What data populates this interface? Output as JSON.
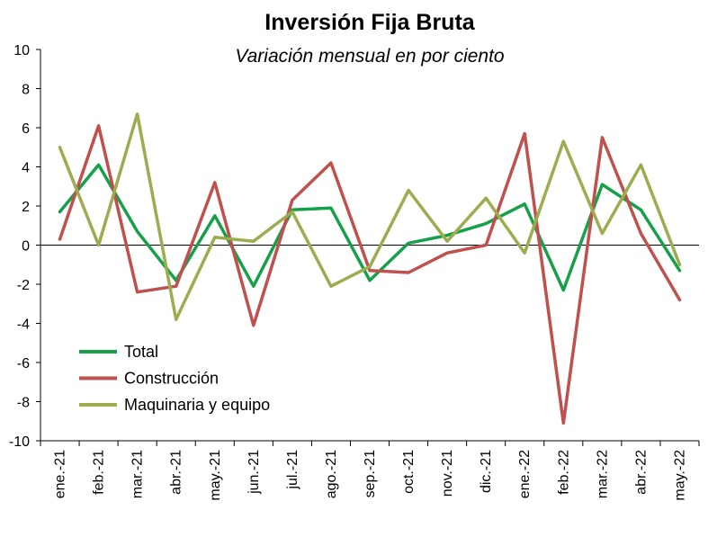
{
  "chart_data": {
    "type": "line",
    "title": "Inversión Fija Bruta",
    "subtitle": "Variación mensual en por ciento",
    "xlabel": "",
    "ylabel": "",
    "ylim": [
      -10,
      10
    ],
    "yticks": [
      "10",
      "8",
      "6",
      "4",
      "2",
      "0",
      "-2",
      "-4",
      "-6",
      "-8",
      "-10"
    ],
    "yticks_values": [
      10,
      8,
      6,
      4,
      2,
      0,
      -2,
      -4,
      -6,
      -8,
      -10
    ],
    "categories": [
      "ene.-21",
      "feb.-21",
      "mar.-21",
      "abr.-21",
      "may.-21",
      "jun.-21",
      "jul.-21",
      "ago.-21",
      "sep.-21",
      "oct.-21",
      "nov.-21",
      "dic.-21",
      "ene.-22",
      "feb.-22",
      "mar.-22",
      "abr.-22",
      "may.-22"
    ],
    "grid": false,
    "legend_position": "bottom-left",
    "series": [
      {
        "name": "Total",
        "color": "#16a04a",
        "values": [
          1.7,
          4.1,
          0.7,
          -1.8,
          1.5,
          -2.1,
          1.8,
          1.9,
          -1.8,
          0.1,
          0.5,
          1.1,
          2.1,
          -2.3,
          3.1,
          1.8,
          -1.3
        ]
      },
      {
        "name": "Construcción",
        "color": "#c0504d",
        "values": [
          0.3,
          6.1,
          -2.4,
          -2.1,
          3.2,
          -4.1,
          2.3,
          4.2,
          -1.3,
          -1.4,
          -0.4,
          0.0,
          5.7,
          -9.1,
          5.5,
          0.6,
          -2.8
        ]
      },
      {
        "name": "Maquinaria y equipo",
        "color": "#9bad4f",
        "values": [
          5.0,
          0.0,
          6.7,
          -3.8,
          0.4,
          0.2,
          1.7,
          -2.1,
          -1.1,
          2.8,
          0.2,
          2.4,
          -0.4,
          5.3,
          0.6,
          4.1,
          -1.0
        ]
      }
    ]
  }
}
